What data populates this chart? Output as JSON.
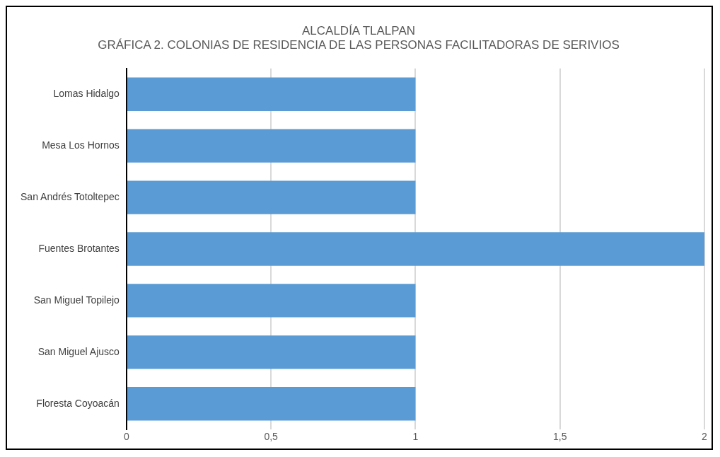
{
  "chart_data": {
    "type": "bar",
    "orientation": "horizontal",
    "title": "ALCALDÍA TLALPAN",
    "subtitle": "GRÁFICA 2. COLONIAS DE RESIDENCIA DE LAS PERSONAS FACILITADORAS DE SERIVIOS",
    "categories": [
      "Lomas Hidalgo",
      "Mesa Los Hornos",
      "San Andrés Totoltepec",
      "Fuentes Brotantes",
      "San Miguel Topilejo",
      "San Miguel Ajusco",
      "Floresta Coyoacán"
    ],
    "values": [
      1,
      1,
      1,
      2,
      1,
      1,
      1
    ],
    "color": "#5b9bd5",
    "xlim": [
      0,
      2
    ],
    "xticks": [
      0,
      {
        "value": 0.5,
        "label": "0,5"
      },
      1,
      {
        "value": 1.5,
        "label": "1,5"
      },
      2
    ],
    "grid": "x",
    "legend": false
  }
}
